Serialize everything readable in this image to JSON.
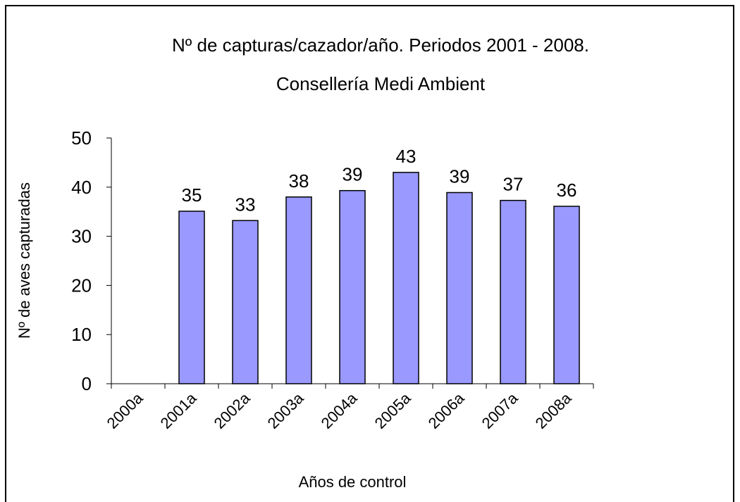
{
  "chart_data": {
    "type": "bar",
    "title": "Nº de capturas/cazador/año. Periodos 2001 - 2008.",
    "subtitle": "Consellería Medi Ambient",
    "x_label": "Años de control",
    "y_label": "Nº de aves capturadas",
    "categories": [
      "2000a",
      "2001a",
      "2002a",
      "2003a",
      "2004a",
      "2005a",
      "2006a",
      "2007a",
      "2008a"
    ],
    "values": [
      null,
      35.1,
      33.2,
      38,
      39.3,
      43,
      38.9,
      37.3,
      36.1
    ],
    "value_labels": [
      null,
      "35",
      "33",
      "38",
      "39",
      "43",
      "39",
      "37",
      "36"
    ],
    "color": "#9999ff",
    "ylim": [
      0,
      50
    ],
    "yticks": [
      0,
      10,
      20,
      30,
      40,
      50
    ],
    "grid": false
  }
}
